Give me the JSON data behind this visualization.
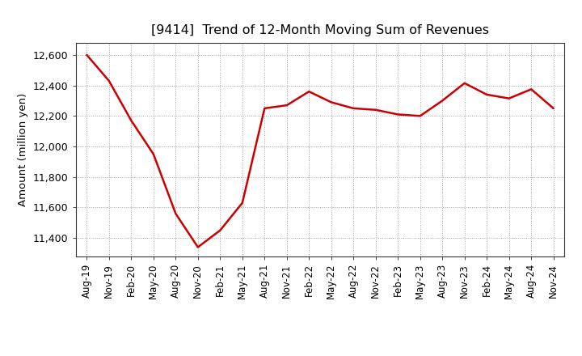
{
  "title": "[9414]  Trend of 12-Month Moving Sum of Revenues",
  "ylabel": "Amount (million yen)",
  "line_color": "#cc0000",
  "line_width": 1.8,
  "background_color": "#ffffff",
  "grid_color": "#999999",
  "ylim": [
    11280,
    12680
  ],
  "yticks": [
    11400,
    11600,
    11800,
    12000,
    12200,
    12400,
    12600
  ],
  "x_labels": [
    "Aug-19",
    "Nov-19",
    "Feb-20",
    "May-20",
    "Aug-20",
    "Nov-20",
    "Feb-21",
    "May-21",
    "Aug-21",
    "Nov-21",
    "Feb-22",
    "May-22",
    "Aug-22",
    "Nov-22",
    "Feb-23",
    "May-23",
    "Aug-23",
    "Nov-23",
    "Feb-24",
    "May-24",
    "Aug-24",
    "Nov-24"
  ],
  "values": [
    12600,
    12430,
    12170,
    11950,
    11560,
    11340,
    11450,
    11630,
    12250,
    12270,
    12360,
    12290,
    12250,
    12240,
    12210,
    12200,
    12300,
    12415,
    12340,
    12315,
    12375,
    12250
  ]
}
